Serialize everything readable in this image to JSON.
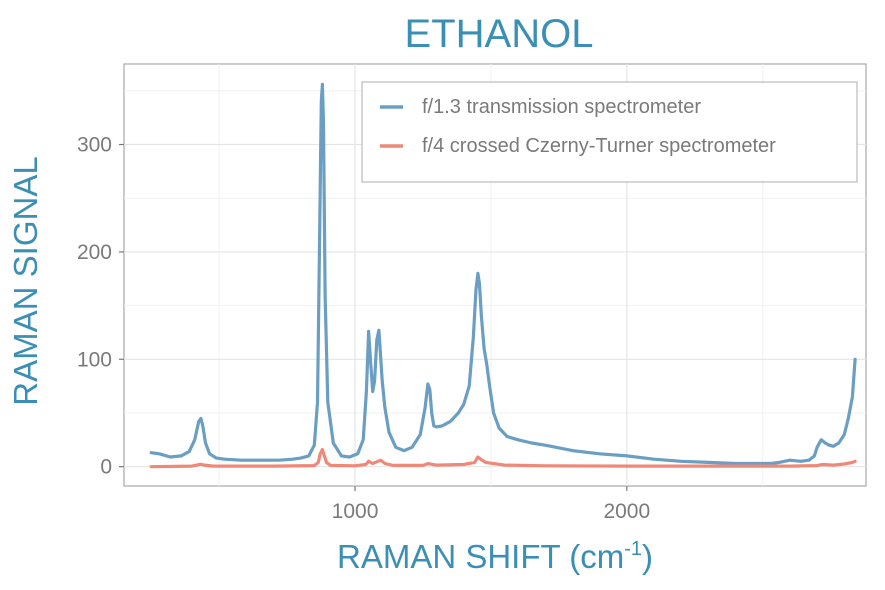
{
  "chart_data": {
    "type": "line",
    "title": "ETHANOL",
    "xlabel": "RAMAN SHIFT (cm",
    "xlabel_sup": "-1",
    "xlabel_end": ")",
    "ylabel": "RAMAN SIGNAL",
    "xlim": [
      150,
      2880
    ],
    "ylim": [
      -18,
      375
    ],
    "xticks": [
      1000,
      2000
    ],
    "yticks": [
      0,
      100,
      200,
      300
    ],
    "grid": true,
    "legend_position": "top-right",
    "series": [
      {
        "name": "f/1.3 transmission spectrometer",
        "color": "#6a9ec3",
        "x": [
          250,
          280,
          320,
          360,
          390,
          410,
          425,
          433,
          440,
          450,
          465,
          490,
          520,
          580,
          650,
          720,
          770,
          800,
          830,
          850,
          862,
          870,
          876,
          880,
          884,
          890,
          900,
          920,
          950,
          980,
          1010,
          1030,
          1042,
          1050,
          1058,
          1065,
          1072,
          1080,
          1088,
          1095,
          1100,
          1110,
          1125,
          1150,
          1180,
          1210,
          1240,
          1258,
          1268,
          1275,
          1282,
          1290,
          1300,
          1320,
          1350,
          1380,
          1400,
          1420,
          1435,
          1445,
          1452,
          1458,
          1465,
          1475,
          1485,
          1495,
          1510,
          1530,
          1560,
          1600,
          1650,
          1700,
          1800,
          1900,
          2000,
          2100,
          2200,
          2300,
          2400,
          2500,
          2530,
          2560,
          2600,
          2640,
          2670,
          2690,
          2700,
          2715,
          2730,
          2745,
          2760,
          2780,
          2800,
          2815,
          2830,
          2840
        ],
        "values": [
          13,
          12,
          9,
          10,
          14,
          25,
          42,
          45,
          38,
          22,
          12,
          8,
          7,
          6,
          6,
          6,
          7,
          8,
          10,
          20,
          60,
          220,
          340,
          356,
          320,
          160,
          60,
          22,
          10,
          9,
          12,
          25,
          70,
          126,
          95,
          70,
          80,
          118,
          127,
          100,
          80,
          55,
          32,
          18,
          15,
          18,
          30,
          55,
          77,
          72,
          50,
          38,
          37,
          38,
          42,
          50,
          58,
          75,
          120,
          165,
          180,
          170,
          140,
          110,
          95,
          75,
          50,
          36,
          28,
          25,
          22,
          20,
          15,
          12,
          10,
          7,
          5,
          4,
          3,
          3,
          3,
          4,
          6,
          5,
          6,
          10,
          18,
          25,
          22,
          20,
          19,
          22,
          30,
          45,
          65,
          100
        ]
      },
      {
        "name": "f/4 crossed Czerny-Turner spectrometer",
        "color": "#ef8878",
        "x": [
          250,
          400,
          425,
          433,
          445,
          480,
          700,
          850,
          865,
          872,
          880,
          886,
          895,
          910,
          1000,
          1040,
          1050,
          1065,
          1080,
          1095,
          1110,
          1140,
          1250,
          1270,
          1285,
          1300,
          1400,
          1440,
          1452,
          1462,
          1480,
          1550,
          1700,
          2000,
          2300,
          2600,
          2700,
          2720,
          2760,
          2800,
          2830,
          2840
        ],
        "values": [
          0,
          0.5,
          1.8,
          2.2,
          1.5,
          0.5,
          0.5,
          1,
          4,
          12,
          16,
          11,
          4,
          1.2,
          0.8,
          2,
          5,
          3,
          4.5,
          6,
          3,
          1.2,
          1.2,
          3,
          2,
          1.5,
          2,
          4,
          9,
          7,
          4,
          1.5,
          0.8,
          0.5,
          0.5,
          0.5,
          1,
          2,
          1.5,
          2.5,
          4,
          5
        ]
      }
    ]
  }
}
